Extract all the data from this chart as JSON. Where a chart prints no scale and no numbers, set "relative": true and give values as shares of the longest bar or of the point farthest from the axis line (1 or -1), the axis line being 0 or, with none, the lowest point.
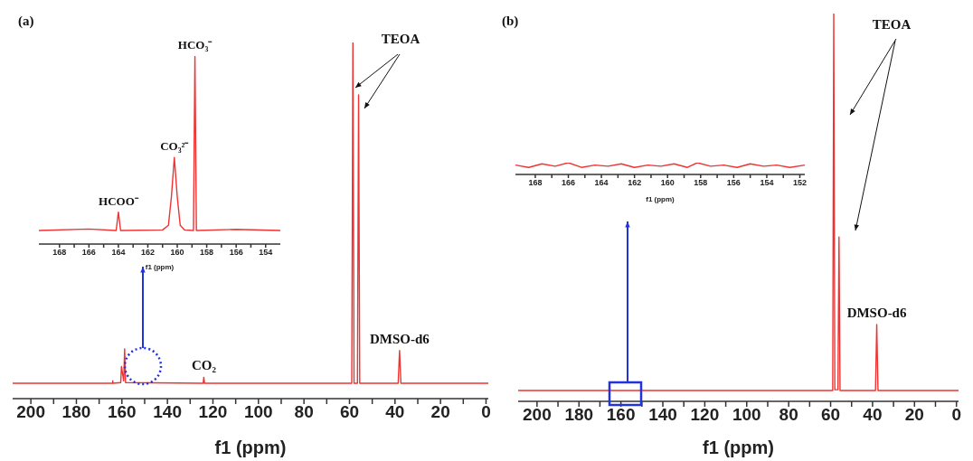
{
  "chart_data": [
    {
      "type": "line",
      "title": "(a)",
      "relative": true,
      "xlabel": "f1 (ppm)",
      "xlim": [
        208,
        -1
      ],
      "xticks": [
        200,
        {
          "value": 190,
          "label": null
        },
        180,
        {
          "value": 170,
          "label": null
        },
        160,
        {
          "value": 150,
          "label": null
        },
        140,
        {
          "value": 130,
          "label": null
        },
        120,
        {
          "value": 110,
          "label": null
        },
        100,
        {
          "value": 90,
          "label": null
        },
        80,
        {
          "value": 70,
          "label": null
        },
        60,
        {
          "value": 50,
          "label": null
        },
        40,
        {
          "value": 30,
          "label": null
        },
        20,
        {
          "value": 10,
          "label": null
        },
        0
      ],
      "x": [
        208,
        164.1,
        164,
        163.9,
        160.5,
        160.2,
        159.2,
        158.8,
        158.4,
        124.3,
        124,
        123.7,
        59,
        58.5,
        58,
        56.5,
        56,
        55.5,
        38.6,
        38,
        37.4,
        -1
      ],
      "series": [
        {
          "color": "#ee3333",
          "values": [
            0.043,
            0.043,
            0.05,
            0.043,
            0.045,
            0.09,
            0.05,
            0.14,
            0.045,
            0.043,
            0.06,
            0.043,
            0.043,
            1,
            0.043,
            0.043,
            0.853,
            0.043,
            0.043,
            0.135,
            0.043,
            0.043
          ]
        }
      ],
      "annotations": [
        "TEOA",
        {
          "text": "CO₂",
          "x": 124,
          "y": 0.06
        },
        {
          "text": "DMSO-d6",
          "x": 38,
          "y": 0.135
        }
      ]
    },
    {
      "type": "line",
      "relative": true,
      "xlabel": "f1 (ppm)",
      "xlim": [
        169.4,
        153
      ],
      "xticks": [
        168,
        {
          "value": 167,
          "label": null
        },
        166,
        {
          "value": 165,
          "label": null
        },
        164,
        {
          "value": 163,
          "label": null
        },
        162,
        {
          "value": 161,
          "label": null
        },
        160,
        {
          "value": 159,
          "label": null
        },
        158,
        {
          "value": 157,
          "label": null
        },
        156,
        {
          "value": 155,
          "label": null
        },
        154
      ],
      "x": [
        169.4,
        166,
        164.15,
        164,
        163.85,
        161,
        160.6,
        160.4,
        160.2,
        160,
        159.8,
        159.5,
        158.9,
        158.8,
        158.7,
        156,
        153
      ],
      "series": [
        {
          "color": "#ee3333",
          "values": [
            0.072,
            0.08,
            0.072,
            0.17,
            0.072,
            0.075,
            0.1,
            0.25,
            0.46,
            0.25,
            0.1,
            0.075,
            0.072,
            1,
            0.072,
            0.078,
            0.072
          ]
        }
      ],
      "annotations": [
        {
          "text": "HCOO⁻",
          "x": 164,
          "y": 0.17
        },
        {
          "text": "CO₃²⁻",
          "x": 160.2,
          "y": 0.46
        },
        {
          "text": "HCO₃⁻",
          "x": 158.8,
          "y": 1
        }
      ]
    },
    {
      "type": "line",
      "title": "(b)",
      "relative": true,
      "xlabel": "f1 (ppm)",
      "xlim": [
        209,
        -1
      ],
      "xticks": [
        200,
        {
          "value": 190,
          "label": null
        },
        180,
        {
          "value": 170,
          "label": null
        },
        160,
        {
          "value": 150,
          "label": null
        },
        140,
        {
          "value": 130,
          "label": null
        },
        120,
        {
          "value": 110,
          "label": null
        },
        100,
        {
          "value": 90,
          "label": null
        },
        80,
        {
          "value": 70,
          "label": null
        },
        60,
        {
          "value": 50,
          "label": null
        },
        40,
        {
          "value": 30,
          "label": null
        },
        20,
        {
          "value": 10,
          "label": null
        },
        0
      ],
      "x": [
        209,
        59,
        58.5,
        58,
        56.5,
        56,
        55.5,
        38.6,
        38,
        37.4,
        -1
      ],
      "series": [
        {
          "color": "#ee3333",
          "values": [
            0.028,
            0.028,
            1,
            0.03,
            0.03,
            0.424,
            0.028,
            0.028,
            0.198,
            0.028,
            0.028
          ]
        }
      ],
      "annotations": [
        "TEOA",
        {
          "text": "DMSO-d6",
          "x": 38,
          "y": 0.198
        }
      ]
    },
    {
      "type": "line",
      "relative": true,
      "xlabel": "f1 (ppm)",
      "xlim": [
        169.2,
        151.7
      ],
      "xticks": [
        168,
        {
          "value": 167,
          "label": null
        },
        166,
        {
          "value": 165,
          "label": null
        },
        164,
        {
          "value": 163,
          "label": null
        },
        162,
        {
          "value": 161,
          "label": null
        },
        160,
        {
          "value": 159,
          "label": null
        },
        158,
        {
          "value": 157,
          "label": null
        },
        156,
        {
          "value": 155,
          "label": null
        },
        154,
        {
          "value": 153,
          "label": null
        },
        152
      ],
      "x": [
        169.2,
        168.4,
        167.6,
        166.8,
        166,
        165.2,
        164.4,
        163.6,
        162.8,
        162,
        161.2,
        160.4,
        159.6,
        158.8,
        158.2,
        157.4,
        156.6,
        155.8,
        155,
        154.2,
        153.4,
        152.6,
        151.7
      ],
      "series": [
        {
          "color": "#ee3333",
          "values": [
            0.8,
            0.6,
            0.9,
            0.7,
            1,
            0.6,
            0.8,
            0.7,
            0.9,
            0.6,
            0.8,
            0.7,
            0.9,
            0.6,
            1,
            0.7,
            0.8,
            0.6,
            0.9,
            0.7,
            0.8,
            0.6,
            0.8
          ]
        }
      ]
    }
  ]
}
